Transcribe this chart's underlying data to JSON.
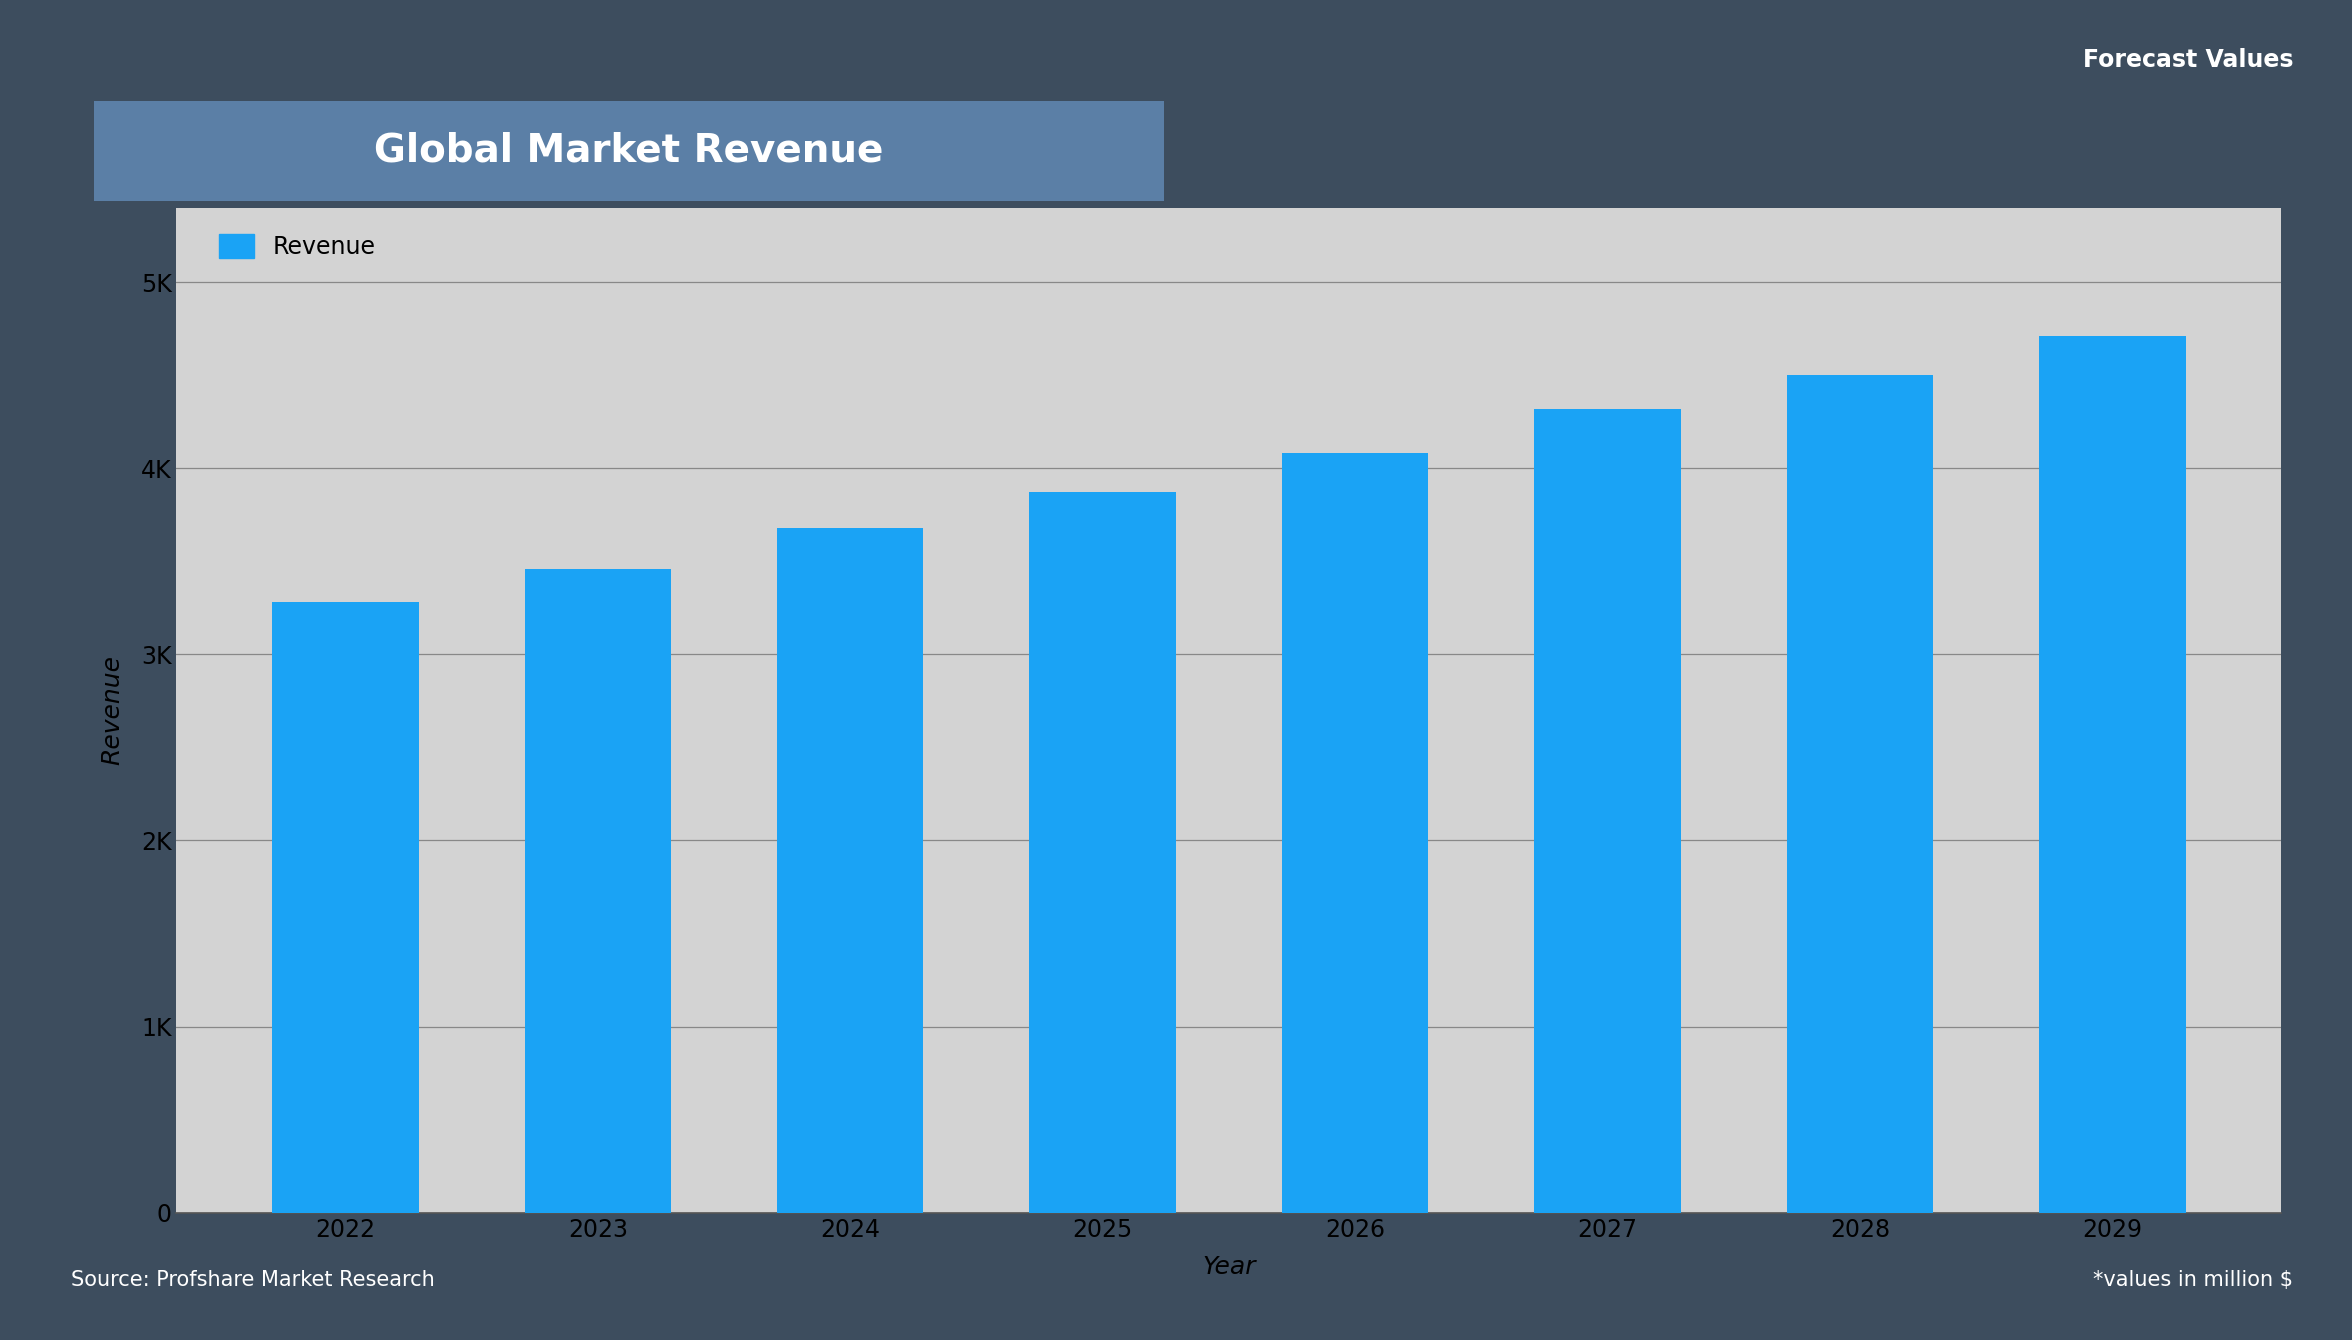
{
  "title": "Global Market Revenue",
  "title_bg_color": "#5b7fa6",
  "title_text_color": "#ffffff",
  "forecast_label": "Forecast Values",
  "source_text": "Source: Profshare Market Research",
  "values_note": "*values in million $",
  "xlabel": "Year",
  "ylabel": "Revenue",
  "years": [
    2022,
    2023,
    2024,
    2025,
    2026,
    2027,
    2028,
    2029
  ],
  "values": [
    3280,
    3460,
    3680,
    3870,
    4080,
    4320,
    4500,
    4710
  ],
  "bar_color": "#1aa3f5",
  "plot_bg_color": "#d3d3d3",
  "outer_bg_color": "#3d4d5e",
  "ylim": [
    0,
    5400
  ],
  "yticks": [
    0,
    1000,
    2000,
    3000,
    4000,
    5000
  ],
  "ytick_labels": [
    "0",
    "1K",
    "2K",
    "3K",
    "4K",
    "5K"
  ],
  "grid_color": "#888888",
  "legend_label": "Revenue",
  "title_fontsize": 28,
  "axis_label_fontsize": 18,
  "tick_fontsize": 17,
  "legend_fontsize": 17,
  "footer_fontsize": 15,
  "forecast_fontsize": 17
}
